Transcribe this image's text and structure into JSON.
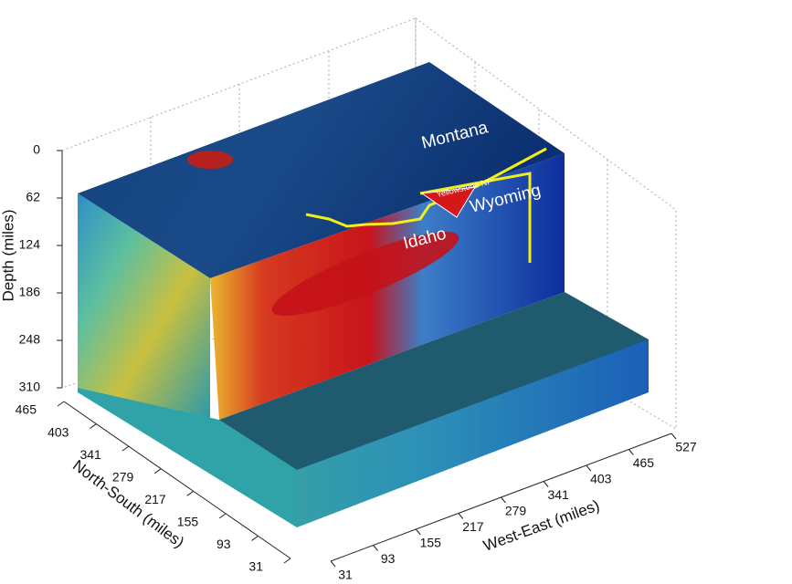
{
  "chart_data": {
    "type": "volume3d",
    "zlabel": "Depth (miles)",
    "zlim": [
      0,
      310
    ],
    "zticks": [
      0,
      62,
      124,
      186,
      248,
      310
    ],
    "ylabel": "North-South (miles)",
    "ylim": [
      465,
      31
    ],
    "yticks": [
      465,
      403,
      341,
      279,
      217,
      155,
      93,
      31
    ],
    "xlabel": "West-East (miles)",
    "xlim": [
      31,
      527
    ],
    "xticks": [
      31,
      93,
      155,
      217,
      279,
      341,
      403,
      465,
      527
    ],
    "annotations": [
      "Montana",
      "Idaho",
      "Wyoming",
      "Yellowstone NP"
    ]
  }
}
